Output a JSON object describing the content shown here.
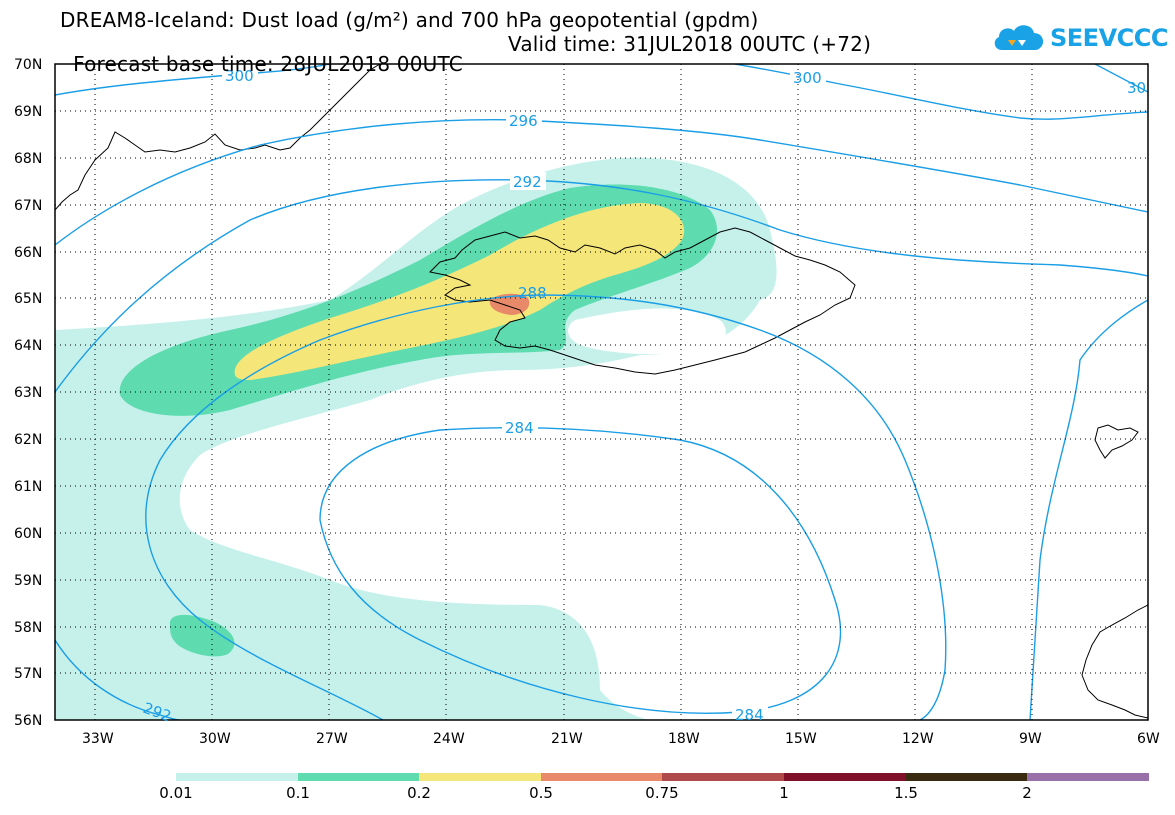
{
  "header": {
    "title_line1": "DREAM8-Iceland: Dust load (g/m²) and 700 hPa geopotential (gpdm)",
    "base_time": "Forecast base time: 28JUL2018 00UTC",
    "valid_time": "Valid time: 31JUL2018 00UTC (+72)"
  },
  "logo": {
    "text": "SEEVCCC",
    "icon": "cloud-icon",
    "color": "#1aa2e6"
  },
  "map": {
    "latitude_labels": [
      "70N",
      "69N",
      "68N",
      "67N",
      "66N",
      "65N",
      "64N",
      "63N",
      "62N",
      "61N",
      "60N",
      "59N",
      "58N",
      "57N",
      "56N"
    ],
    "longitude_labels": [
      "33W",
      "30W",
      "27W",
      "24W",
      "21W",
      "18W",
      "15W",
      "12W",
      "9W",
      "6W"
    ],
    "lat_range": [
      56,
      70
    ],
    "lon_range": [
      -34.1,
      -6
    ],
    "gridlines": "dotted",
    "contour_color": "#1a9ee6",
    "contour_labels": [
      "300",
      "300",
      "30",
      "296",
      "292",
      "288",
      "284",
      "284",
      "292"
    ]
  },
  "colorbar": {
    "labels": [
      "0.01",
      "0.1",
      "0.2",
      "0.5",
      "0.75",
      "1",
      "1.5",
      "2"
    ],
    "colors": [
      "#c6f1eb",
      "#5edcb0",
      "#f5e67a",
      "#e88a6a",
      "#b04a4a",
      "#80102a",
      "#3a2a10",
      "#9a70a8"
    ]
  }
}
